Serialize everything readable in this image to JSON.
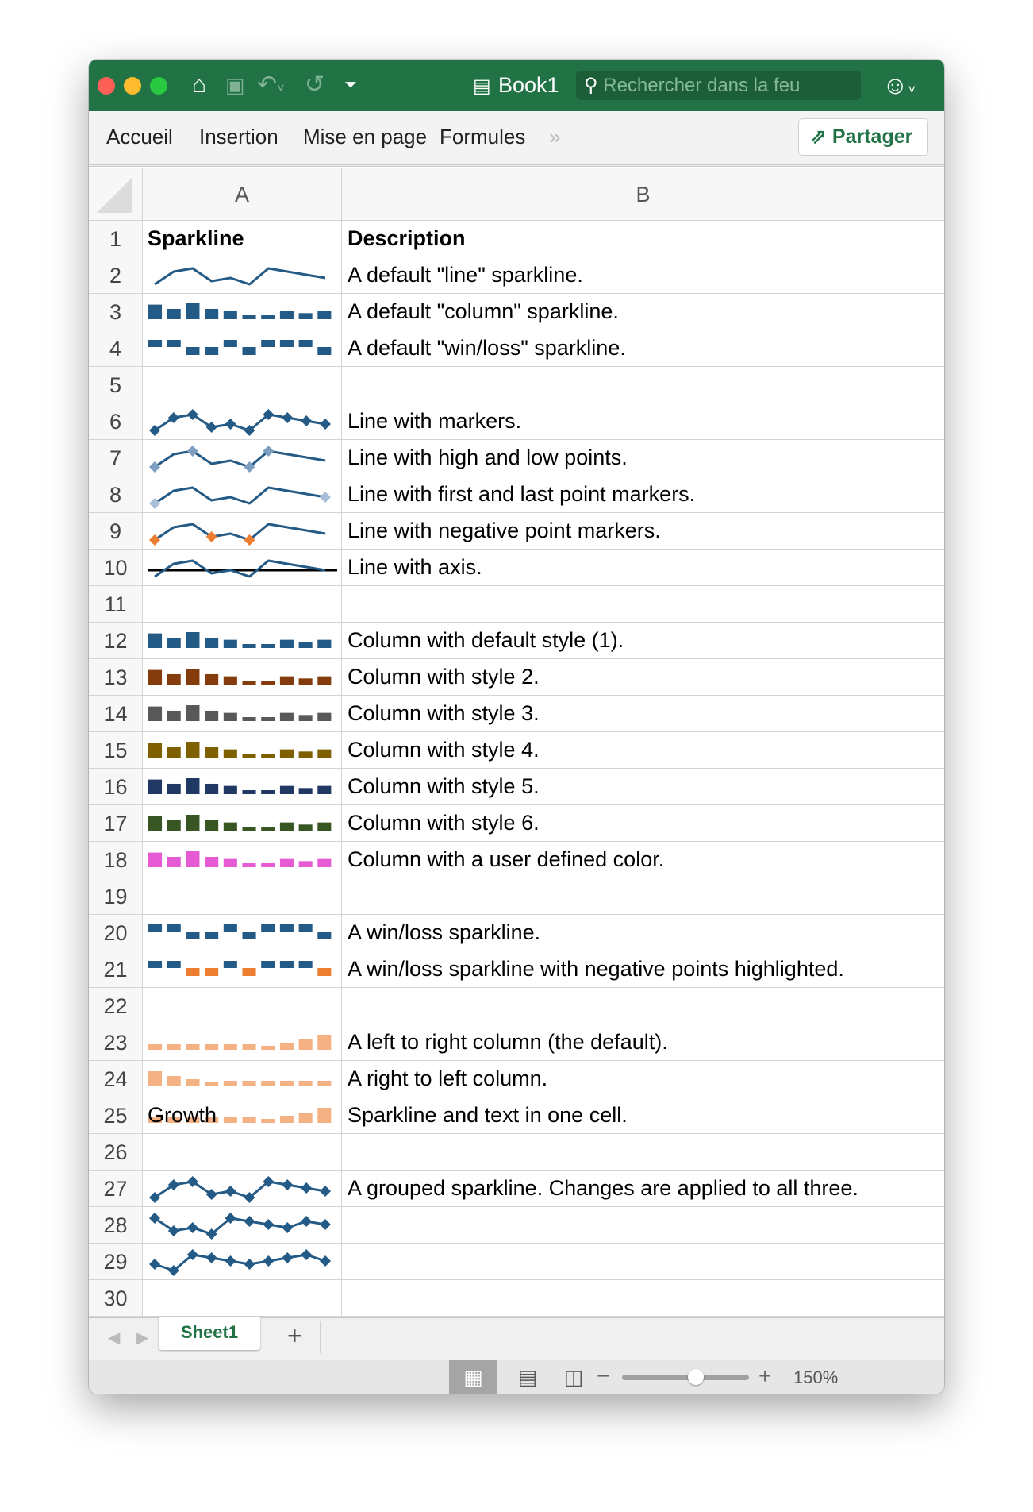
{
  "window": {
    "title": "Book1",
    "search_placeholder": "Rechercher dans la feu",
    "traffic_lights": {
      "close": "#fe5f57",
      "minimize": "#febc2e",
      "zoom": "#28c840"
    },
    "accent": "#217346"
  },
  "ribbon": {
    "tabs": [
      "Accueil",
      "Insertion",
      "Mise en page",
      "Formules"
    ],
    "more": "»",
    "share_label": "Partager"
  },
  "columns": [
    "A",
    "B"
  ],
  "rows": [
    {
      "n": "1",
      "a": "Sparkline",
      "b": "Description",
      "bold": true
    },
    {
      "n": "2",
      "b": "A default \"line\" sparkline.",
      "spark": {
        "type": "line",
        "data": [
          -2,
          2,
          3,
          -1,
          0,
          -2,
          3,
          2,
          1,
          0
        ],
        "color": "#245a86"
      }
    },
    {
      "n": "3",
      "b": "A default \"column\" sparkline.",
      "spark": {
        "type": "column",
        "data": [
          30,
          20,
          33,
          20,
          15,
          5,
          5,
          15,
          10,
          15
        ],
        "color": "#245a86"
      }
    },
    {
      "n": "4",
      "b": "A default \"win/loss\" sparkline.",
      "spark": {
        "type": "winloss",
        "data": [
          1,
          1,
          -1,
          -1,
          1,
          -1,
          1,
          1,
          1,
          -1
        ],
        "color": "#245a86"
      }
    },
    {
      "n": "5",
      "b": ""
    },
    {
      "n": "6",
      "b": "Line with markers.",
      "spark": {
        "type": "line",
        "data": [
          -2,
          2,
          3,
          -1,
          0,
          -2,
          3,
          2,
          1,
          0
        ],
        "color": "#245a86",
        "markers": "all",
        "marker_color": "#245a86"
      }
    },
    {
      "n": "7",
      "b": "Line with high and low points.",
      "spark": {
        "type": "line",
        "data": [
          -2,
          2,
          3,
          -1,
          0,
          -2,
          3,
          2,
          1,
          0
        ],
        "color": "#245a86",
        "markers": "highlow",
        "marker_color": "#7f9fc0"
      }
    },
    {
      "n": "8",
      "b": "Line with first and last point markers.",
      "spark": {
        "type": "line",
        "data": [
          -2,
          2,
          3,
          -1,
          0,
          -2,
          3,
          2,
          1,
          0
        ],
        "color": "#245a86",
        "markers": "firstlast",
        "marker_color": "#a9bfd8"
      }
    },
    {
      "n": "9",
      "b": "Line with negative point markers.",
      "spark": {
        "type": "line",
        "data": [
          -2,
          2,
          3,
          -1,
          0,
          -2,
          3,
          2,
          1,
          0
        ],
        "color": "#245a86",
        "markers": "negative",
        "marker_color": "#ed7d31"
      }
    },
    {
      "n": "10",
      "b": "Line with axis.",
      "spark": {
        "type": "line",
        "data": [
          -2,
          2,
          3,
          -1,
          0,
          -2,
          3,
          2,
          1,
          0
        ],
        "color": "#245a86",
        "axis": true,
        "axis_color": "#000000"
      }
    },
    {
      "n": "11",
      "b": ""
    },
    {
      "n": "12",
      "b": "Column with default style (1).",
      "spark": {
        "type": "column",
        "data": [
          30,
          20,
          33,
          20,
          15,
          5,
          5,
          15,
          10,
          15
        ],
        "color": "#245a86"
      }
    },
    {
      "n": "13",
      "b": "Column with style 2.",
      "spark": {
        "type": "column",
        "data": [
          30,
          20,
          33,
          20,
          15,
          5,
          5,
          15,
          10,
          15
        ],
        "color": "#843c0c"
      }
    },
    {
      "n": "14",
      "b": "Column with style 3.",
      "spark": {
        "type": "column",
        "data": [
          30,
          20,
          33,
          20,
          15,
          5,
          5,
          15,
          10,
          15
        ],
        "color": "#595959"
      }
    },
    {
      "n": "15",
      "b": "Column with style 4.",
      "spark": {
        "type": "column",
        "data": [
          30,
          20,
          33,
          20,
          15,
          5,
          5,
          15,
          10,
          15
        ],
        "color": "#7f6000"
      }
    },
    {
      "n": "16",
      "b": "Column with style 5.",
      "spark": {
        "type": "column",
        "data": [
          30,
          20,
          33,
          20,
          15,
          5,
          5,
          15,
          10,
          15
        ],
        "color": "#203864"
      }
    },
    {
      "n": "17",
      "b": "Column with style 6.",
      "spark": {
        "type": "column",
        "data": [
          30,
          20,
          33,
          20,
          15,
          5,
          5,
          15,
          10,
          15
        ],
        "color": "#375623"
      }
    },
    {
      "n": "18",
      "b": "Column with a user defined color.",
      "spark": {
        "type": "column",
        "data": [
          30,
          20,
          33,
          20,
          15,
          5,
          5,
          15,
          10,
          15
        ],
        "color": "#e55bd4"
      }
    },
    {
      "n": "19",
      "b": ""
    },
    {
      "n": "20",
      "b": "A win/loss sparkline.",
      "spark": {
        "type": "winloss",
        "data": [
          1,
          1,
          -1,
          -1,
          1,
          -1,
          1,
          1,
          1,
          -1
        ],
        "color": "#245a86"
      }
    },
    {
      "n": "21",
      "b": "A win/loss sparkline with negative points highlighted.",
      "spark": {
        "type": "winloss",
        "data": [
          1,
          1,
          -1,
          -1,
          1,
          -1,
          1,
          1,
          1,
          -1
        ],
        "color": "#245a86",
        "negative_color": "#ed7d31"
      }
    },
    {
      "n": "22",
      "b": ""
    },
    {
      "n": "23",
      "b": "A left to right column (the default).",
      "spark": {
        "type": "column",
        "data": [
          2,
          2,
          2,
          2,
          2,
          2,
          1,
          3,
          5,
          8
        ],
        "color": "#f4b183",
        "min": 0
      }
    },
    {
      "n": "24",
      "b": "A right to left column.",
      "spark": {
        "type": "column",
        "data": [
          2,
          2,
          2,
          2,
          2,
          2,
          1,
          3,
          5,
          8
        ],
        "color": "#f4b183",
        "min": 0,
        "reverse": true
      }
    },
    {
      "n": "25",
      "a": "Growth",
      "b": "Sparkline and text in one cell.",
      "spark": {
        "type": "column",
        "data": [
          2,
          2,
          2,
          2,
          2,
          2,
          1,
          3,
          5,
          8
        ],
        "color": "#f4b183",
        "min": 0
      }
    },
    {
      "n": "26",
      "b": ""
    },
    {
      "n": "27",
      "b": "A grouped sparkline. Changes are applied to all three.",
      "spark": {
        "type": "line",
        "data": [
          -2,
          2,
          3,
          -1,
          0,
          -2,
          3,
          2,
          1,
          0
        ],
        "color": "#245a86",
        "markers": "all",
        "marker_color": "#245a86"
      }
    },
    {
      "n": "28",
      "b": "",
      "spark": {
        "type": "line",
        "data": [
          3,
          -1,
          0,
          -2,
          3,
          2,
          1,
          0,
          2,
          1
        ],
        "color": "#245a86",
        "markers": "all",
        "marker_color": "#245a86"
      }
    },
    {
      "n": "29",
      "b": "",
      "spark": {
        "type": "line",
        "data": [
          0,
          -2,
          3,
          2,
          1,
          0,
          1,
          2,
          3,
          1
        ],
        "color": "#245a86",
        "markers": "all",
        "marker_color": "#245a86"
      }
    },
    {
      "n": "30",
      "b": ""
    }
  ],
  "sheet_tabs": {
    "active": "Sheet1",
    "add": "+"
  },
  "status": {
    "zoom_label": "150%",
    "zoom_minus": "−",
    "zoom_plus": "+",
    "zoom_slider_fraction": 0.58
  }
}
